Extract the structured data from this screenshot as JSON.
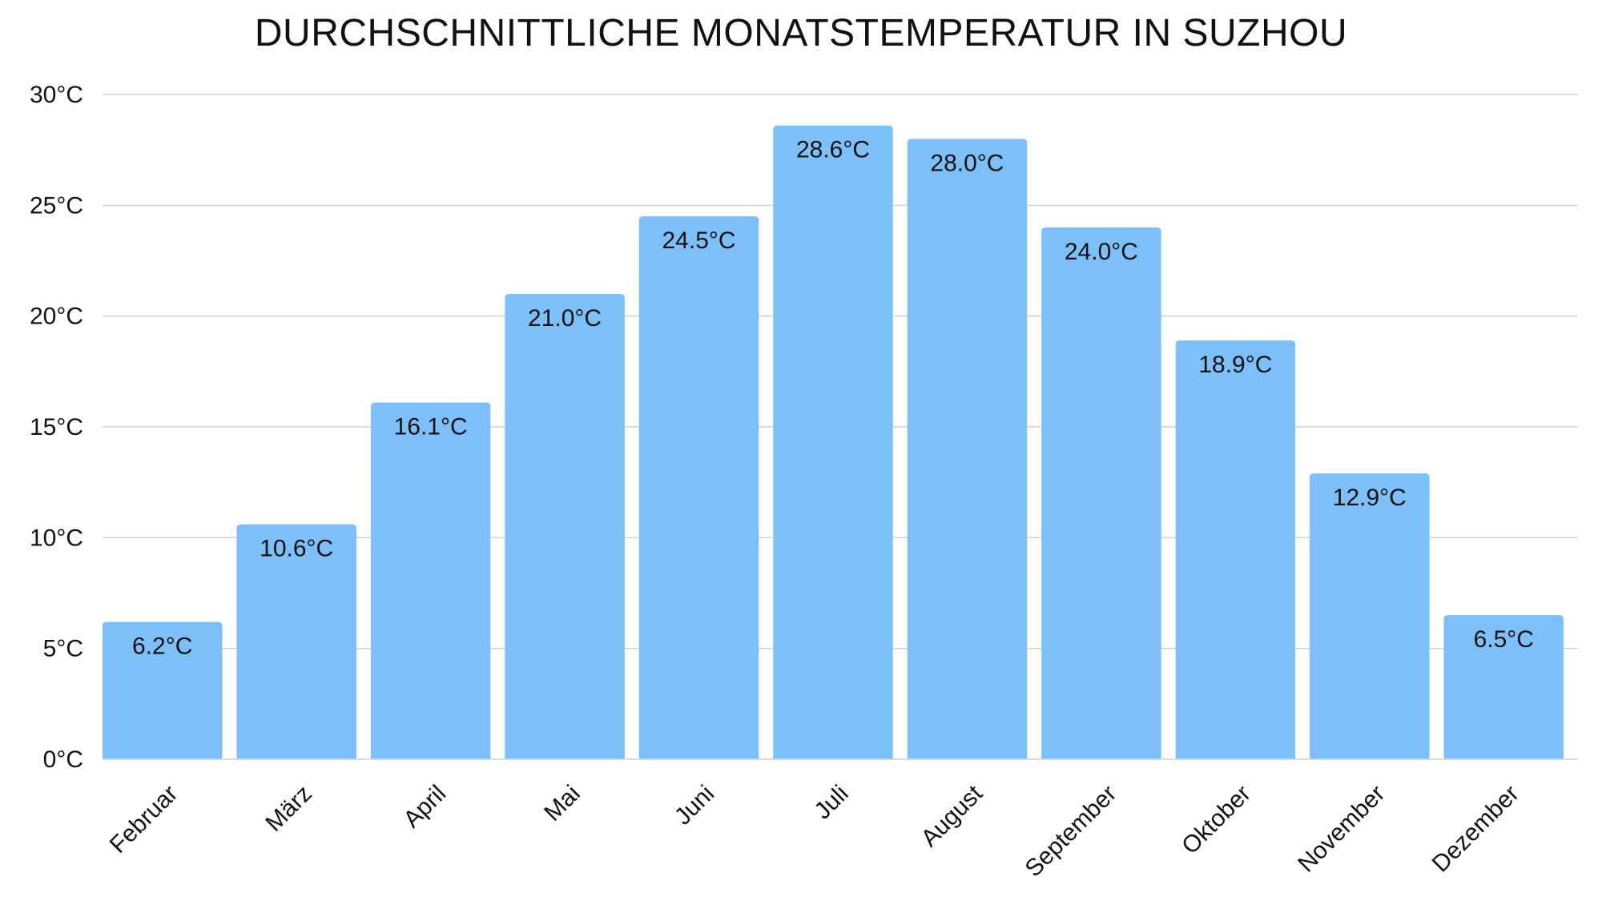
{
  "chart_data": {
    "type": "bar",
    "title": "DURCHSCHNITTLICHE MONATSTEMPERATUR IN SUZHOU",
    "xlabel": "",
    "ylabel": "",
    "categories": [
      "Februar",
      "März",
      "April",
      "Mai",
      "Juni",
      "Juli",
      "August",
      "September",
      "Oktober",
      "November",
      "Dezember"
    ],
    "values": [
      6.2,
      10.6,
      16.1,
      21.0,
      24.5,
      28.6,
      28.0,
      24.0,
      18.9,
      12.9,
      6.5
    ],
    "value_labels": [
      "6.2°C",
      "10.6°C",
      "16.1°C",
      "21.0°C",
      "24.5°C",
      "28.6°C",
      "28.0°C",
      "24.0°C",
      "18.9°C",
      "12.9°C",
      "6.5°C"
    ],
    "ylim": [
      0,
      30
    ],
    "y_ticks": [
      0,
      5,
      10,
      15,
      20,
      25,
      30
    ],
    "y_tick_labels": [
      "0°C",
      "5°C",
      "10°C",
      "15°C",
      "20°C",
      "25°C",
      "30°C"
    ],
    "grid": true,
    "legend": "none",
    "colors": {
      "bar": "#7dbff8",
      "grid": "#d0d0d0",
      "text": "#111111"
    }
  }
}
